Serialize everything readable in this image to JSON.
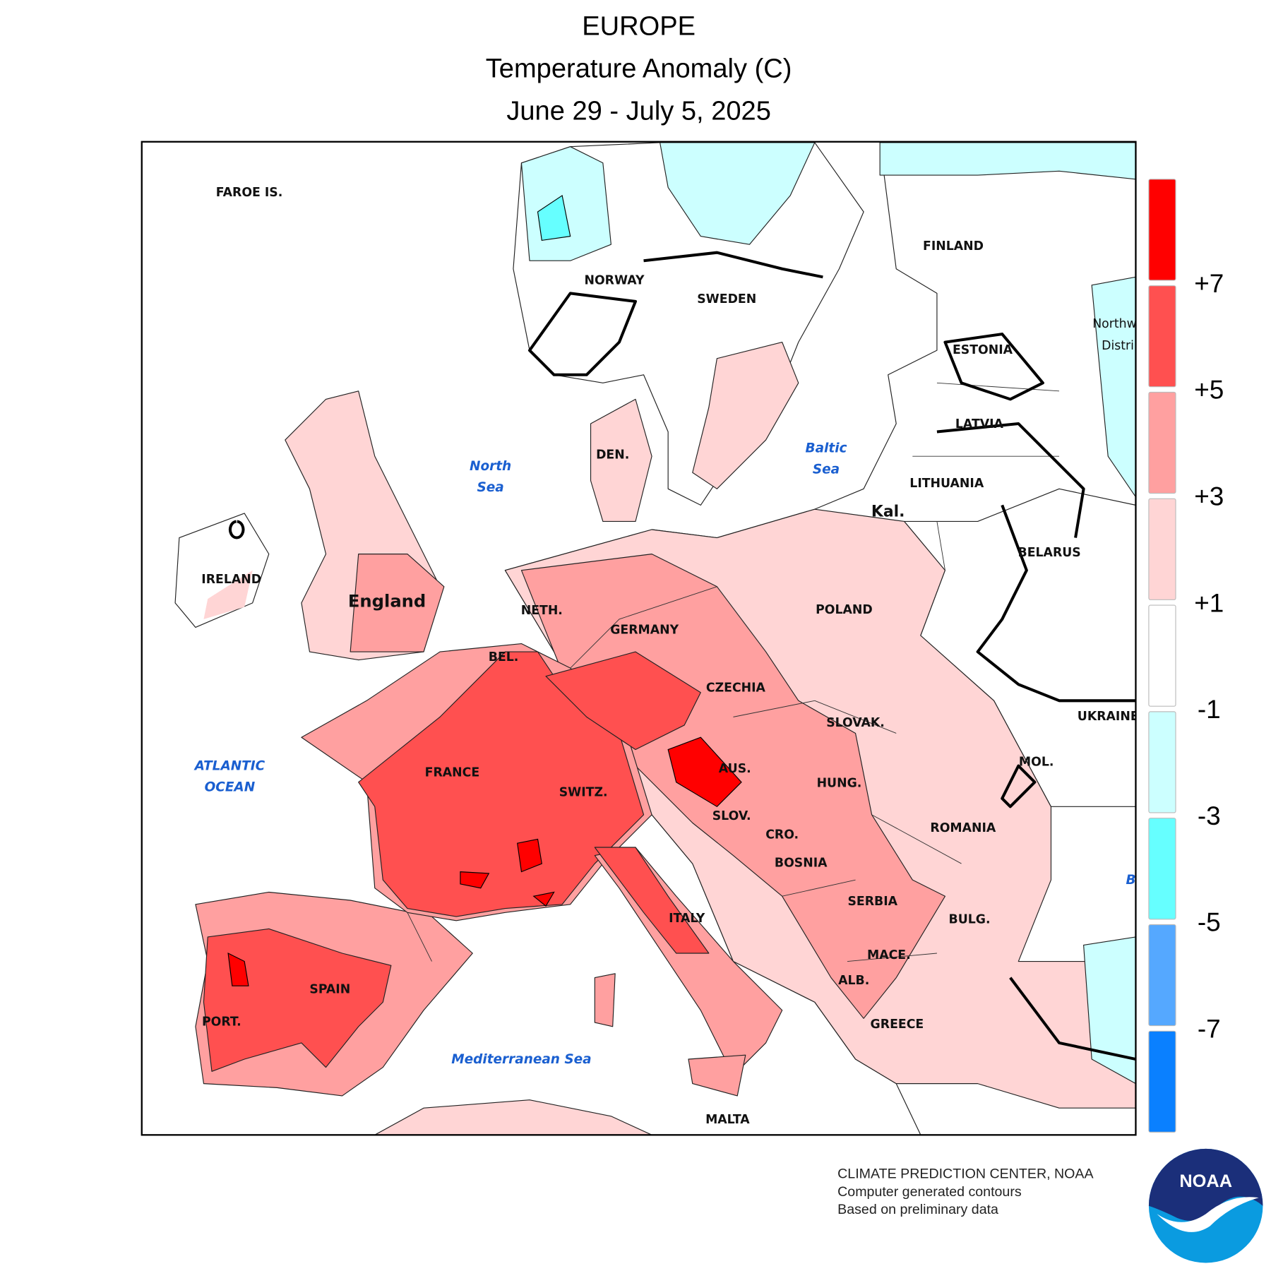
{
  "header": {
    "title": "EUROPE",
    "subtitle": "Temperature Anomaly (C)",
    "period": "June 29 - July 5, 2025"
  },
  "map": {
    "countries": [
      "FAROE IS.",
      "NORWAY",
      "SWEDEN",
      "FINLAND",
      "ESTONIA",
      "LATVIA",
      "LITHUANIA",
      "Kal.",
      "BELARUS",
      "POLAND",
      "Northw",
      "Distri",
      "UKRAINE",
      "IRELAND",
      "England",
      "NETH.",
      "GERMANY",
      "BEL.",
      "CZECHIA",
      "SLOVAK.",
      "FRANCE",
      "AUS.",
      "SWITZ.",
      "HUNG.",
      "MOL.",
      "SLOV.",
      "CRO.",
      "ROMANIA",
      "BOSNIA",
      "SERBIA",
      "BULG.",
      "ITALY",
      "MACE.",
      "ALB.",
      "SPAIN",
      "PORT.",
      "GREECE",
      "MALTA",
      "DEN."
    ],
    "waters": [
      "North",
      "Sea",
      "Baltic",
      "Sea",
      "ATLANTIC",
      "OCEAN",
      "Mediterranean Sea",
      "B"
    ]
  },
  "legend": {
    "colors": [
      "#ff0000",
      "#ff5050",
      "#ffa0a0",
      "#ffd5d5",
      "#ffffff",
      "#ccffff",
      "#66ffff",
      "#55a8ff",
      "#0a80ff"
    ],
    "ticks": [
      "+7",
      "+5",
      "+3",
      "+1",
      "-1",
      "-3",
      "-5",
      "-7"
    ]
  },
  "footer": {
    "lines": [
      "CLIMATE PREDICTION CENTER, NOAA",
      "Computer generated contours",
      "Based on preliminary data"
    ],
    "logo": "NOAA"
  }
}
